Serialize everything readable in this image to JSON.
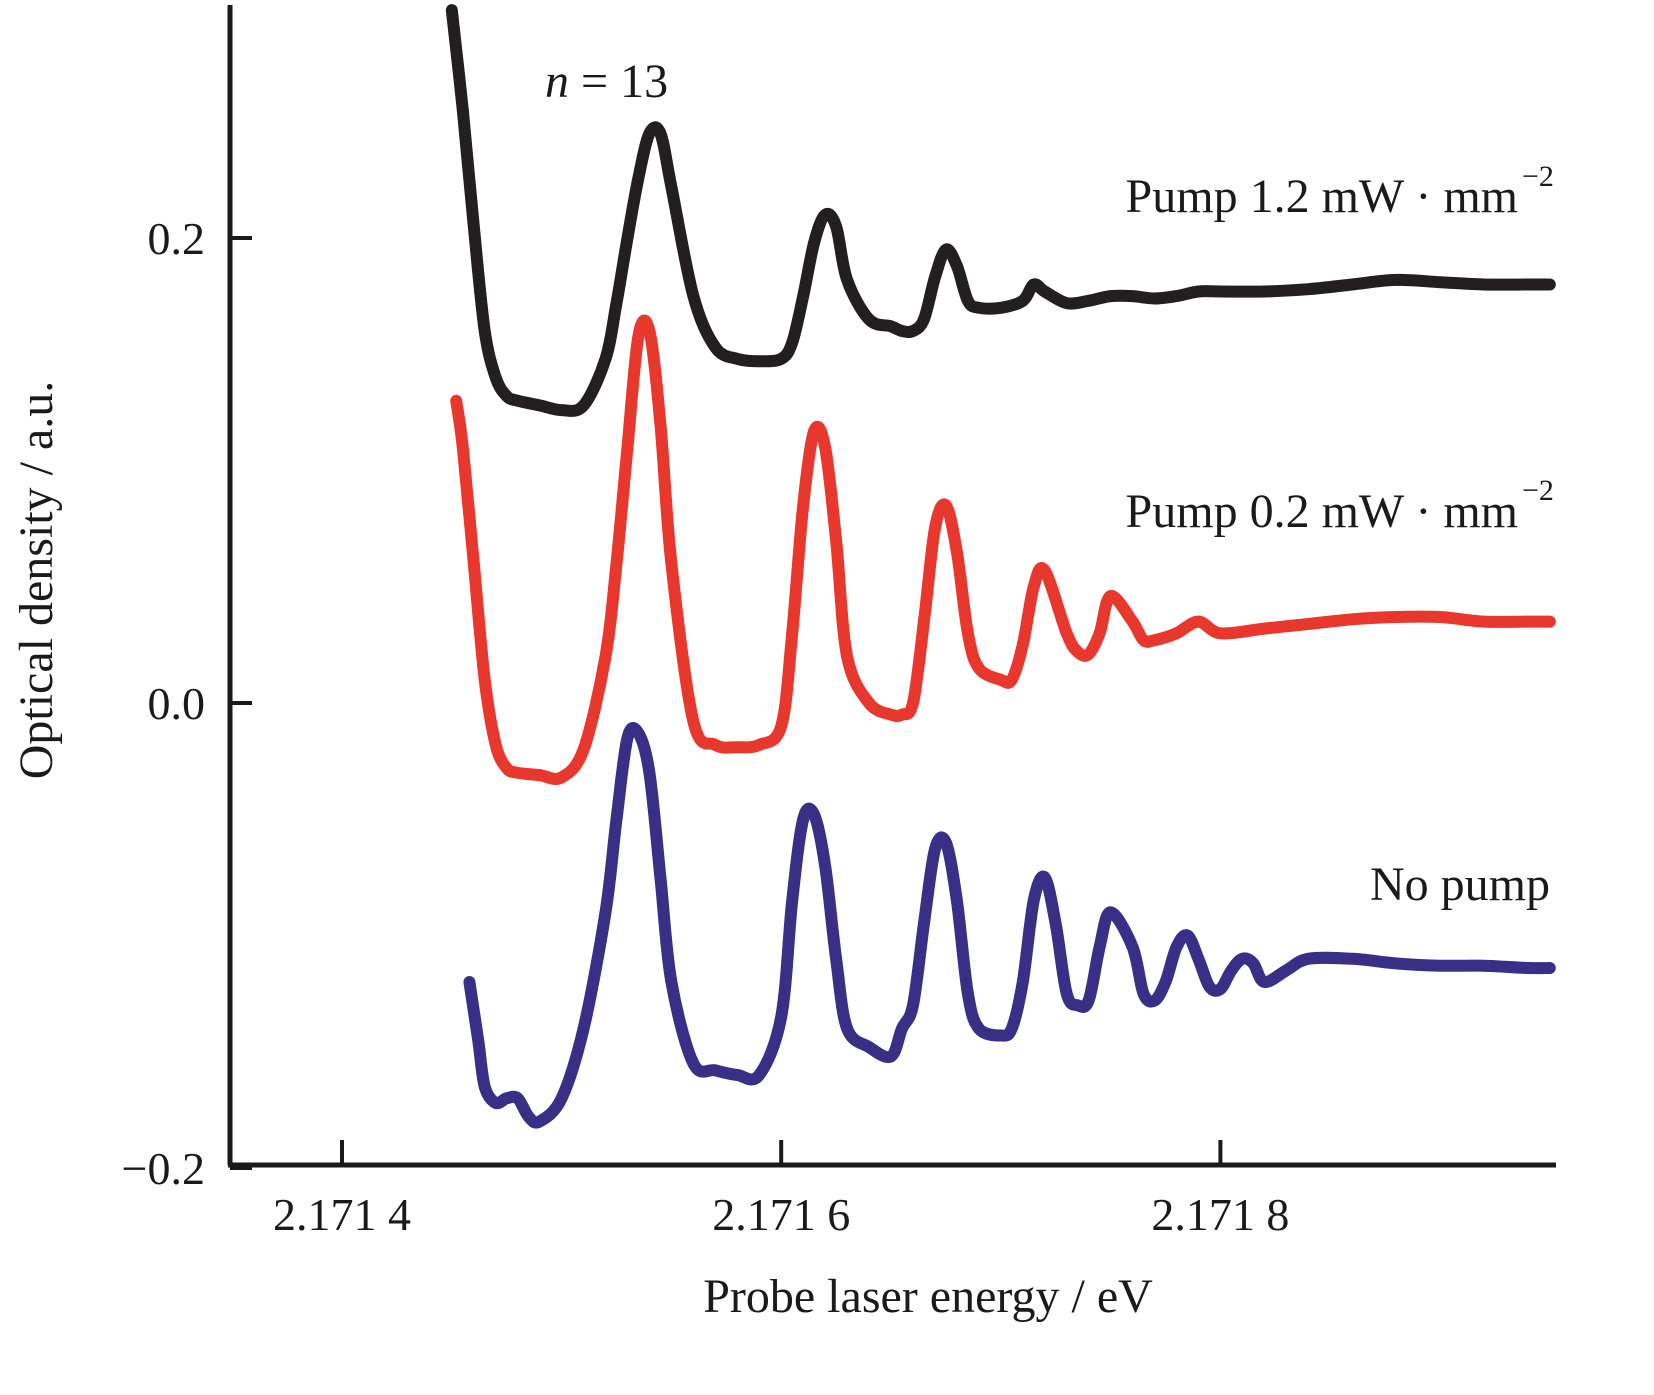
{
  "chart_data": {
    "type": "line",
    "title": "",
    "xlabel": "Probe laser energy / eV",
    "ylabel": "Optical density / a.u.",
    "xlim": [
      2.17135,
      2.17195
    ],
    "ylim": [
      -0.2,
      0.3
    ],
    "grid": false,
    "legend": "inline labels at right of each curve",
    "x_ticks": [
      {
        "value": 2.1714,
        "label": "2.171 4"
      },
      {
        "value": 2.1716,
        "label": "2.171 6"
      },
      {
        "value": 2.1718,
        "label": "2.171 8"
      }
    ],
    "y_ticks": [
      {
        "value": 0.2,
        "label": "0.2"
      },
      {
        "value": 0.0,
        "label": "0.0"
      },
      {
        "value": -0.2,
        "label": "−0.2"
      }
    ],
    "annotations": [
      {
        "text_italic": "n",
        "text": " = 13",
        "x": 2.17153,
        "y": 0.27
      }
    ],
    "series": [
      {
        "name": "Pump 1.2 mW·mm⁻²",
        "label_main": "Pump 1.2 mW · mm",
        "label_sup": "−2",
        "color": "#231f20",
        "x": [
          2.17145,
          2.171455,
          2.17146,
          2.171465,
          2.17147,
          2.171475,
          2.17148,
          2.17149,
          2.1715,
          2.17151,
          2.17152,
          2.171525,
          2.17153,
          2.171535,
          2.17154,
          2.171545,
          2.17155,
          2.17156,
          2.17157,
          2.17158,
          2.17159,
          2.1716,
          2.171605,
          2.17161,
          2.171615,
          2.17162,
          2.171625,
          2.17163,
          2.17164,
          2.17165,
          2.171655,
          2.17166,
          2.171665,
          2.17167,
          2.171675,
          2.17168,
          2.171685,
          2.17169,
          2.1717,
          2.17171,
          2.171715,
          2.17172,
          2.17173,
          2.17174,
          2.17175,
          2.17176,
          2.17177,
          2.17178,
          2.17179,
          2.1718,
          2.17182,
          2.17184,
          2.17186,
          2.17188,
          2.1719,
          2.17192,
          2.17194,
          2.17195
        ],
        "y": [
          0.298,
          0.255,
          0.205,
          0.16,
          0.14,
          0.132,
          0.13,
          0.128,
          0.126,
          0.128,
          0.148,
          0.172,
          0.2,
          0.226,
          0.245,
          0.245,
          0.222,
          0.175,
          0.153,
          0.148,
          0.147,
          0.148,
          0.155,
          0.175,
          0.198,
          0.21,
          0.205,
          0.182,
          0.165,
          0.162,
          0.16,
          0.16,
          0.165,
          0.183,
          0.195,
          0.188,
          0.173,
          0.17,
          0.17,
          0.173,
          0.18,
          0.177,
          0.172,
          0.173,
          0.175,
          0.175,
          0.174,
          0.175,
          0.177,
          0.177,
          0.177,
          0.178,
          0.18,
          0.182,
          0.181,
          0.18,
          0.18,
          0.18
        ]
      },
      {
        "name": "Pump 0.2 mW·mm⁻²",
        "label_main": "Pump 0.2 mW · mm",
        "label_sup": "−2",
        "color": "#e8372c",
        "x": [
          2.171452,
          2.171455,
          2.17146,
          2.171465,
          2.17147,
          2.171475,
          2.17148,
          2.17149,
          2.1715,
          2.17151,
          2.17152,
          2.171525,
          2.17153,
          2.171535,
          2.17154,
          2.171545,
          2.17155,
          2.17156,
          2.17157,
          2.17158,
          2.17159,
          2.1716,
          2.171605,
          2.17161,
          2.171615,
          2.17162,
          2.171625,
          2.17163,
          2.17164,
          2.17165,
          2.171655,
          2.17166,
          2.171665,
          2.17167,
          2.171675,
          2.17168,
          2.171685,
          2.17169,
          2.1717,
          2.171705,
          2.17171,
          2.171715,
          2.17172,
          2.17173,
          2.171735,
          2.17174,
          2.171745,
          2.17175,
          2.17176,
          2.171765,
          2.17177,
          2.17178,
          2.17179,
          2.1718,
          2.17182,
          2.17184,
          2.17186,
          2.17188,
          2.1719,
          2.17192,
          2.17194,
          2.17195
        ],
        "y": [
          0.13,
          0.11,
          0.06,
          0.01,
          -0.018,
          -0.028,
          -0.03,
          -0.031,
          -0.032,
          -0.02,
          0.02,
          0.06,
          0.11,
          0.158,
          0.16,
          0.12,
          0.06,
          -0.008,
          -0.018,
          -0.019,
          -0.018,
          -0.01,
          0.03,
          0.085,
          0.117,
          0.11,
          0.07,
          0.02,
          0.0,
          -0.005,
          -0.005,
          0.0,
          0.035,
          0.075,
          0.085,
          0.065,
          0.03,
          0.015,
          0.01,
          0.01,
          0.025,
          0.05,
          0.057,
          0.03,
          0.022,
          0.021,
          0.03,
          0.046,
          0.035,
          0.027,
          0.027,
          0.03,
          0.035,
          0.03,
          0.032,
          0.034,
          0.036,
          0.037,
          0.037,
          0.035,
          0.035,
          0.035
        ]
      },
      {
        "name": "No pump",
        "label_main": "No pump",
        "label_sup": "",
        "color": "#3a2f86",
        "x": [
          2.171458,
          2.171462,
          2.171465,
          2.17147,
          2.171475,
          2.17148,
          2.171485,
          2.17149,
          2.1715,
          2.17151,
          2.17152,
          2.171525,
          2.17153,
          2.171535,
          2.17154,
          2.171545,
          2.17155,
          2.17156,
          2.17157,
          2.17158,
          2.17159,
          2.1716,
          2.171605,
          2.17161,
          2.171615,
          2.17162,
          2.171625,
          2.17163,
          2.17164,
          2.17165,
          2.171655,
          2.17166,
          2.171665,
          2.17167,
          2.171675,
          2.17168,
          2.171685,
          2.17169,
          2.1717,
          2.171705,
          2.17171,
          2.171715,
          2.17172,
          2.171725,
          2.17173,
          2.171735,
          2.17174,
          2.171745,
          2.17175,
          2.17176,
          2.171765,
          2.17177,
          2.171775,
          2.17178,
          2.171785,
          2.17179,
          2.171795,
          2.1718,
          2.171805,
          2.17181,
          2.171815,
          2.17182,
          2.17183,
          2.17184,
          2.17186,
          2.17188,
          2.1719,
          2.17192,
          2.17194,
          2.17195
        ],
        "y": [
          -0.12,
          -0.145,
          -0.165,
          -0.172,
          -0.17,
          -0.17,
          -0.178,
          -0.18,
          -0.17,
          -0.14,
          -0.09,
          -0.05,
          -0.015,
          -0.013,
          -0.03,
          -0.075,
          -0.12,
          -0.155,
          -0.158,
          -0.16,
          -0.16,
          -0.135,
          -0.085,
          -0.05,
          -0.048,
          -0.07,
          -0.11,
          -0.14,
          -0.148,
          -0.152,
          -0.14,
          -0.13,
          -0.095,
          -0.063,
          -0.06,
          -0.085,
          -0.125,
          -0.14,
          -0.143,
          -0.14,
          -0.12,
          -0.085,
          -0.075,
          -0.095,
          -0.125,
          -0.13,
          -0.128,
          -0.105,
          -0.09,
          -0.105,
          -0.125,
          -0.128,
          -0.12,
          -0.105,
          -0.1,
          -0.11,
          -0.122,
          -0.123,
          -0.115,
          -0.11,
          -0.112,
          -0.12,
          -0.115,
          -0.11,
          -0.11,
          -0.112,
          -0.113,
          -0.113,
          -0.114,
          -0.114
        ]
      }
    ]
  }
}
